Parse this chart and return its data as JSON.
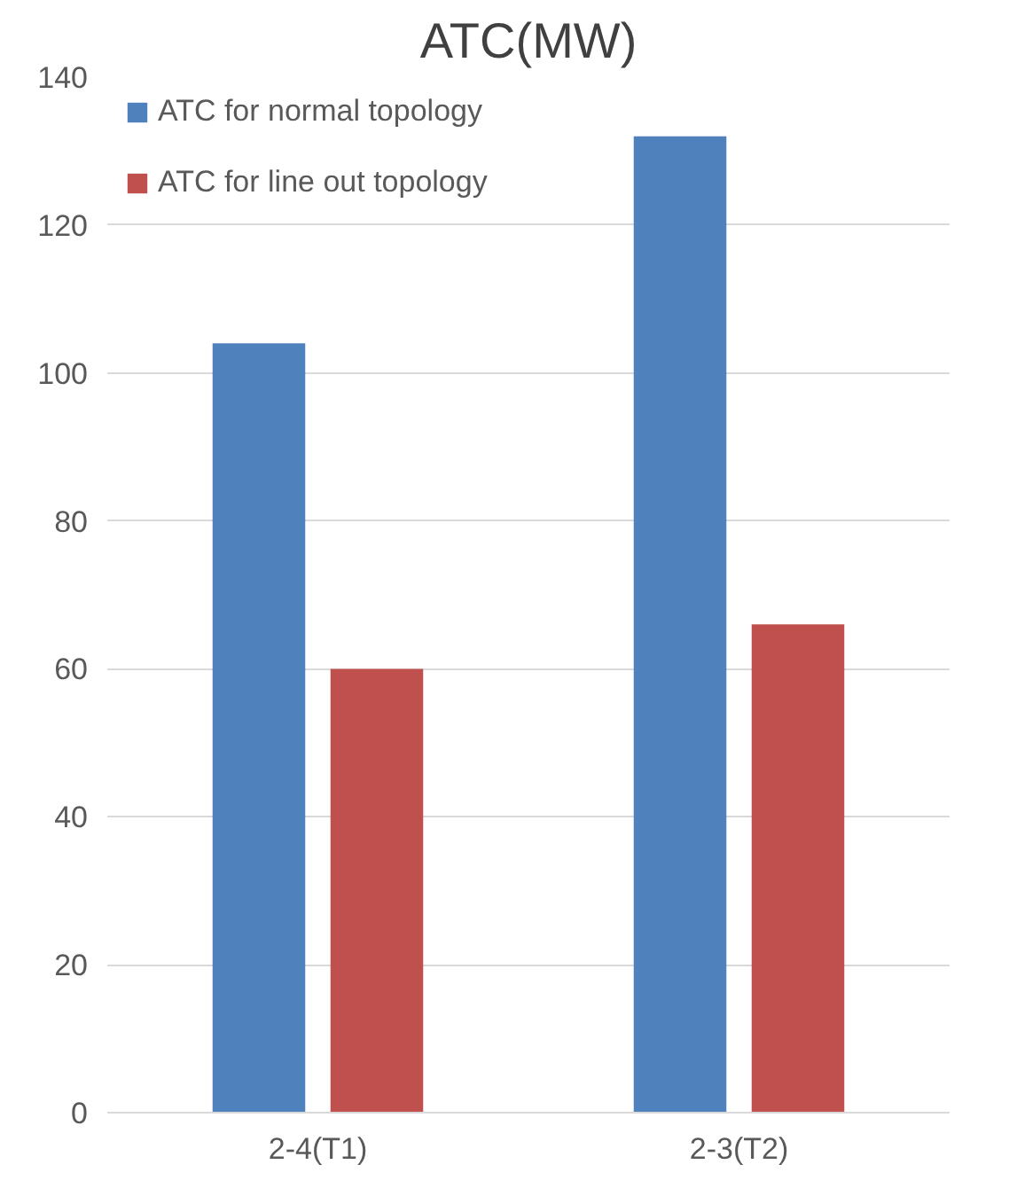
{
  "chart_data": {
    "type": "bar",
    "title": "ATC(MW)",
    "categories": [
      "2-4(T1)",
      "2-3(T2)"
    ],
    "series": [
      {
        "name": "ATC for normal topology",
        "color": "#4f81bd",
        "values": [
          104,
          132
        ]
      },
      {
        "name": "ATC for line out topology",
        "color": "#c0504d",
        "values": [
          60,
          66
        ]
      }
    ],
    "ylim": [
      0,
      140
    ],
    "yticks": [
      0,
      20,
      40,
      60,
      80,
      100,
      120,
      140
    ],
    "grid": "y",
    "legend": "top left"
  }
}
